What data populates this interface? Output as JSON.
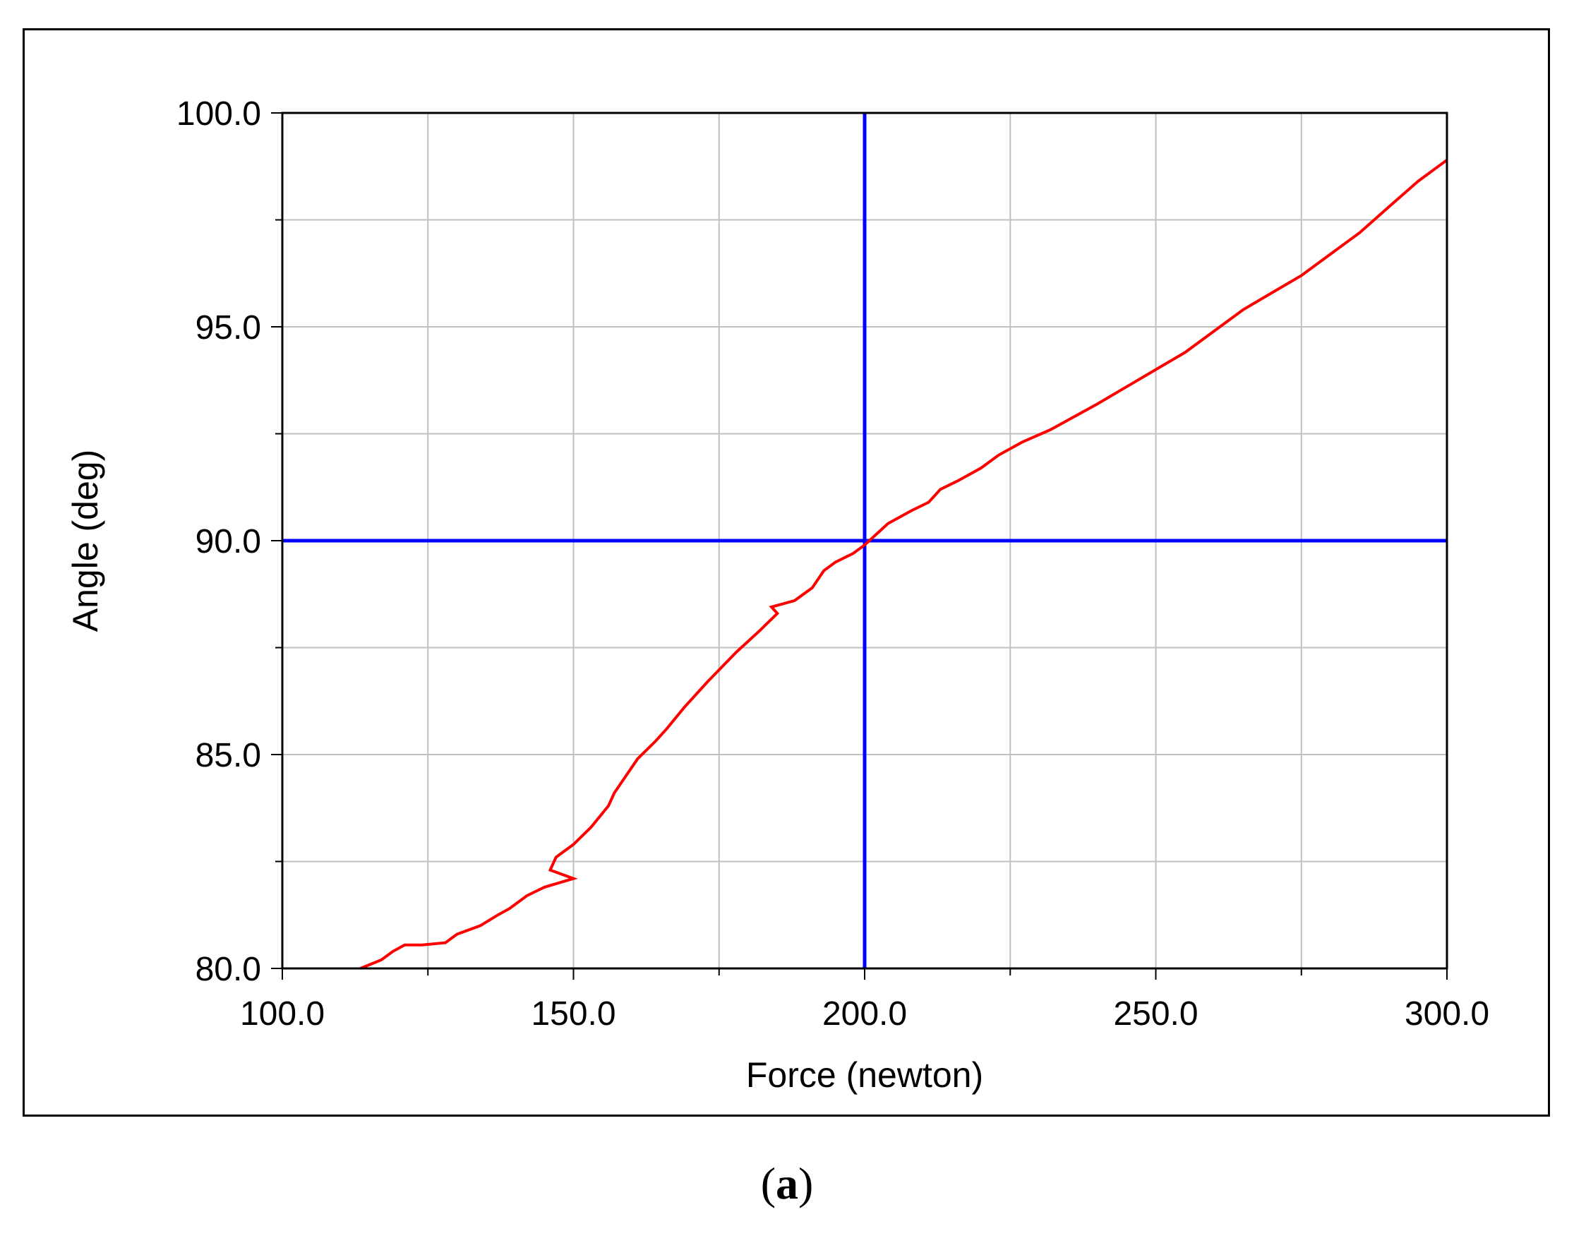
{
  "chart_data": {
    "type": "line",
    "title": "",
    "xlabel": "Force (newton)",
    "ylabel": "Angle (deg)",
    "xlim": [
      100,
      300
    ],
    "ylim": [
      80,
      100
    ],
    "x_ticks": [
      "100.0",
      "150.0",
      "200.0",
      "250.0",
      "300.0"
    ],
    "y_ticks": [
      "80.0",
      "85.0",
      "90.0",
      "95.0",
      "100.0"
    ],
    "x_tick_values": [
      100,
      150,
      200,
      250,
      300
    ],
    "y_tick_values": [
      80,
      85,
      90,
      95,
      100
    ],
    "x_minor_tick_values": [
      125,
      175,
      225,
      275
    ],
    "y_minor_tick_values": [
      82.5,
      87.5,
      92.5,
      97.5
    ],
    "grid": true,
    "colors": {
      "series": "#ff0000",
      "reference": "#0000ff",
      "grid": "#c0c0c0"
    },
    "reference_lines": {
      "x": 200,
      "y": 90
    },
    "series": [
      {
        "x": [
          113.4,
          117,
          119,
          121,
          124,
          128,
          130,
          134,
          137,
          139,
          142,
          145,
          150,
          146,
          147,
          150,
          153,
          156,
          157,
          159,
          161,
          164,
          166,
          169,
          173,
          178,
          182,
          185,
          184,
          188,
          191,
          193,
          195,
          198,
          200,
          204,
          208,
          211,
          213,
          216,
          220,
          223,
          227,
          232,
          236,
          240,
          245,
          250,
          255,
          260,
          265,
          270,
          275,
          280,
          285,
          290,
          295,
          300
        ],
        "y": [
          80.0,
          80.2,
          80.4,
          80.55,
          80.55,
          80.6,
          80.8,
          81.0,
          81.25,
          81.4,
          81.7,
          81.9,
          82.1,
          82.3,
          82.6,
          82.9,
          83.3,
          83.8,
          84.1,
          84.5,
          84.9,
          85.3,
          85.6,
          86.1,
          86.7,
          87.4,
          87.9,
          88.3,
          88.45,
          88.6,
          88.9,
          89.3,
          89.5,
          89.7,
          89.9,
          90.4,
          90.7,
          90.9,
          91.2,
          91.4,
          91.7,
          92.0,
          92.3,
          92.6,
          92.9,
          93.2,
          93.6,
          94.0,
          94.4,
          94.9,
          95.4,
          95.8,
          96.2,
          96.7,
          97.2,
          97.8,
          98.4,
          98.9
        ]
      }
    ]
  },
  "panel_label": "a"
}
